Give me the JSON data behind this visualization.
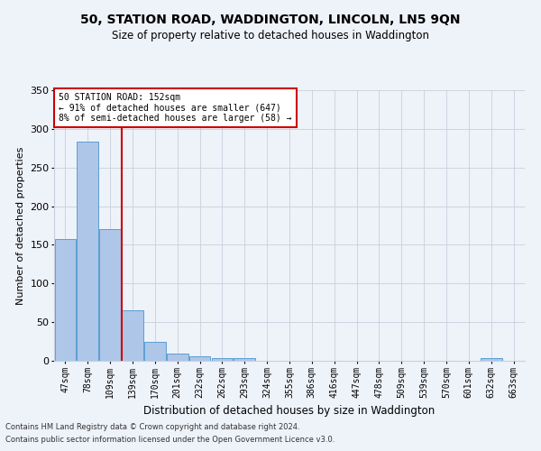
{
  "title1": "50, STATION ROAD, WADDINGTON, LINCOLN, LN5 9QN",
  "title2": "Size of property relative to detached houses in Waddington",
  "xlabel": "Distribution of detached houses by size in Waddington",
  "ylabel": "Number of detached properties",
  "bins": [
    "47sqm",
    "78sqm",
    "109sqm",
    "139sqm",
    "170sqm",
    "201sqm",
    "232sqm",
    "262sqm",
    "293sqm",
    "324sqm",
    "355sqm",
    "386sqm",
    "416sqm",
    "447sqm",
    "478sqm",
    "509sqm",
    "539sqm",
    "570sqm",
    "601sqm",
    "632sqm",
    "663sqm"
  ],
  "values": [
    157,
    284,
    170,
    65,
    25,
    9,
    6,
    4,
    3,
    0,
    0,
    0,
    0,
    0,
    0,
    0,
    0,
    0,
    0,
    3,
    0
  ],
  "bar_color": "#aec6e8",
  "bar_edge_color": "#5a9fd4",
  "vline_x_index": 3,
  "vline_color": "#cc0000",
  "annotation_text": "50 STATION ROAD: 152sqm\n← 91% of detached houses are smaller (647)\n8% of semi-detached houses are larger (58) →",
  "annotation_box_color": "#ffffff",
  "annotation_box_edge": "#cc0000",
  "ylim": [
    0,
    350
  ],
  "yticks": [
    0,
    50,
    100,
    150,
    200,
    250,
    300,
    350
  ],
  "footer1": "Contains HM Land Registry data © Crown copyright and database right 2024.",
  "footer2": "Contains public sector information licensed under the Open Government Licence v3.0.",
  "bg_color": "#eef2f9",
  "title1_fontsize": 10,
  "title2_fontsize": 8.5,
  "xlabel_fontsize": 8.5,
  "ylabel_fontsize": 8,
  "tick_fontsize": 7,
  "footer_fontsize": 6
}
